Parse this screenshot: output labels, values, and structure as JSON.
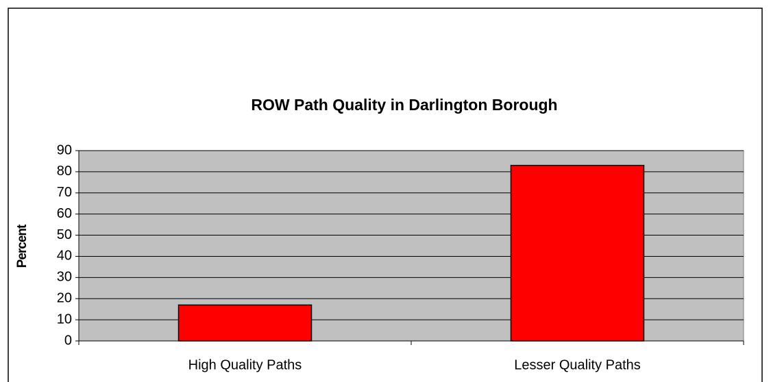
{
  "chart_data": {
    "type": "bar",
    "title": "ROW Path Quality in Darlington Borough",
    "y_label": "Percent",
    "categories": [
      "High Quality Paths",
      "Lesser Quality Paths"
    ],
    "values": [
      17,
      83
    ],
    "color": "#ff0000",
    "ylim": [
      0,
      90
    ],
    "yticks": [
      0,
      10,
      20,
      30,
      40,
      50,
      60,
      70,
      80,
      90
    ],
    "grid": true
  }
}
